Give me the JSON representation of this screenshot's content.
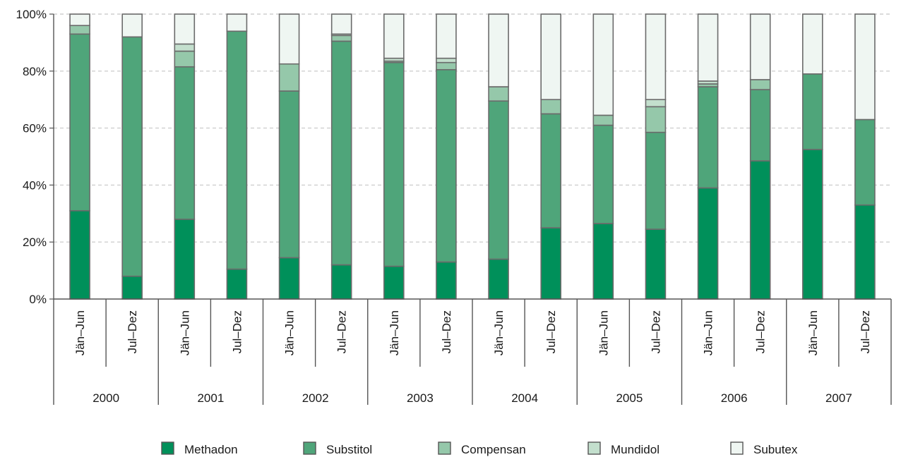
{
  "chart_data": {
    "type": "bar",
    "stacked": true,
    "title": "",
    "xlabel": "",
    "ylabel": "",
    "ylim": [
      0,
      100
    ],
    "y_ticks": [
      "0%",
      "20%",
      "40%",
      "60%",
      "80%",
      "100%"
    ],
    "grid": true,
    "legend_position": "bottom",
    "categories": [
      {
        "year": "2000",
        "half": "Jän–Jun"
      },
      {
        "year": "2000",
        "half": "Jul–Dez"
      },
      {
        "year": "2001",
        "half": "Jän–Jun"
      },
      {
        "year": "2001",
        "half": "Jul–Dez"
      },
      {
        "year": "2002",
        "half": "Jän–Jun"
      },
      {
        "year": "2002",
        "half": "Jul–Dez"
      },
      {
        "year": "2003",
        "half": "Jän–Jun"
      },
      {
        "year": "2003",
        "half": "Jul–Dez"
      },
      {
        "year": "2004",
        "half": "Jän–Jun"
      },
      {
        "year": "2004",
        "half": "Jul–Dez"
      },
      {
        "year": "2005",
        "half": "Jän–Jun"
      },
      {
        "year": "2005",
        "half": "Jul–Dez"
      },
      {
        "year": "2006",
        "half": "Jän–Jun"
      },
      {
        "year": "2006",
        "half": "Jul–Dez"
      },
      {
        "year": "2007",
        "half": "Jän–Jun"
      },
      {
        "year": "2007",
        "half": "Jul–Dez"
      }
    ],
    "years": [
      "2000",
      "2001",
      "2002",
      "2003",
      "2004",
      "2005",
      "2006",
      "2007"
    ],
    "series": [
      {
        "name": "Methadon",
        "color": "#00905a",
        "values": [
          31,
          8,
          28,
          10.5,
          14.5,
          12,
          11.5,
          13,
          14,
          25,
          26.5,
          24.5,
          39,
          48.5,
          52.5,
          33
        ]
      },
      {
        "name": "Substitol",
        "color": "#4fa57a",
        "values": [
          62,
          84,
          53.5,
          83.5,
          58.5,
          78.5,
          71.5,
          67.5,
          55.5,
          40,
          34.5,
          34,
          35.5,
          25,
          26.5,
          30
        ]
      },
      {
        "name": "Compensan",
        "color": "#95c8aa",
        "values": [
          3,
          0,
          5.5,
          0,
          9.5,
          2,
          0.5,
          2.5,
          5,
          5,
          3.5,
          9,
          1,
          3.5,
          0,
          0
        ]
      },
      {
        "name": "Mundidol",
        "color": "#c3dfcd",
        "values": [
          0,
          0,
          2.5,
          0,
          0,
          0.5,
          1,
          1.5,
          0,
          0,
          0,
          2.5,
          1,
          0,
          0,
          0
        ]
      },
      {
        "name": "Subutex",
        "color": "#eff6f2",
        "values": [
          4,
          8,
          10.5,
          6,
          17.5,
          7,
          15.5,
          15.5,
          25.5,
          30,
          35.5,
          30,
          23.5,
          23,
          21,
          37
        ]
      }
    ]
  }
}
